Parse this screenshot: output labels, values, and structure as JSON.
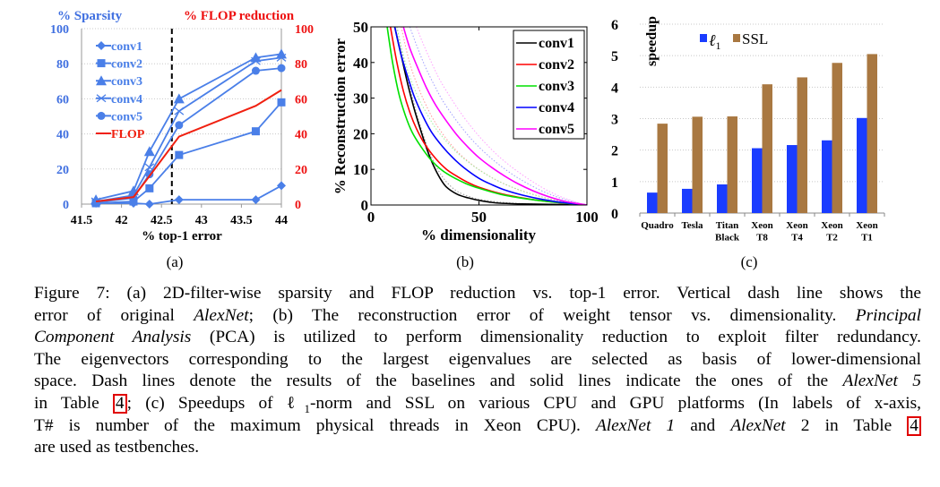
{
  "chart_data": [
    {
      "id": "a",
      "type": "line",
      "panel_label": "(a)",
      "y_title_left": "% Sparsity",
      "y_title_right": "% FLOP reduction",
      "xlabel": "% top-1 error",
      "xlim": [
        41.5,
        44
      ],
      "ylim": [
        0,
        100
      ],
      "x_ticks": [
        "41.5",
        "42",
        "42.5",
        "43",
        "43.5",
        "44"
      ],
      "y_ticks": [
        "0",
        "20",
        "40",
        "60",
        "80",
        "100"
      ],
      "y_ticks_right": [
        "0",
        "20",
        "40",
        "60",
        "80",
        "100"
      ],
      "grid": true,
      "legend_position": "top-left",
      "vertical_dash_line_x": 42.63,
      "colors": {
        "conv": "#4a7fe8",
        "flop": "#f02010",
        "left_axis": "#3f6fe0",
        "right_axis": "#ee1111"
      },
      "series": [
        {
          "name": "conv1",
          "marker": "diamond",
          "x": [
            41.68,
            42.15,
            42.35,
            42.72,
            43.68,
            44.0
          ],
          "y": [
            0.5,
            0.5,
            0,
            2.5,
            2.5,
            10.5
          ]
        },
        {
          "name": "conv2",
          "marker": "square",
          "x": [
            41.68,
            42.15,
            42.35,
            42.72,
            43.68,
            44.0
          ],
          "y": [
            0.5,
            1.5,
            9,
            28,
            41.5,
            58
          ]
        },
        {
          "name": "conv3",
          "marker": "triangle",
          "x": [
            41.68,
            42.15,
            42.35,
            42.72,
            43.68,
            44.0
          ],
          "y": [
            2.5,
            7.5,
            30,
            60,
            83.5,
            85.5
          ]
        },
        {
          "name": "conv4",
          "marker": "x",
          "x": [
            41.68,
            42.15,
            42.35,
            42.72,
            43.68,
            44.0
          ],
          "y": [
            1.5,
            5,
            21,
            53,
            81.5,
            83.5
          ]
        },
        {
          "name": "conv5",
          "marker": "circle",
          "x": [
            41.68,
            42.15,
            42.35,
            42.72,
            43.68,
            44.0
          ],
          "y": [
            1,
            3.5,
            17,
            45,
            76,
            77.5
          ]
        },
        {
          "name": "FLOP",
          "marker": "none",
          "x": [
            41.68,
            42.15,
            42.35,
            42.72,
            43.68,
            44.0
          ],
          "y": [
            1.5,
            4,
            16,
            38.5,
            56,
            65
          ]
        }
      ]
    },
    {
      "id": "b",
      "type": "line",
      "panel_label": "(b)",
      "ylabel": "% Reconstruction error",
      "xlabel": "% dimensionality",
      "xlim": [
        0,
        100
      ],
      "ylim": [
        0,
        50
      ],
      "x_ticks": [
        "0",
        "50",
        "100"
      ],
      "y_ticks": [
        "0",
        "10",
        "20",
        "30",
        "40",
        "50"
      ],
      "grid": false,
      "legend_position": "top-right",
      "note": "solid lines = AlexNet 5, dotted lines = baselines",
      "series": [
        {
          "name": "conv1",
          "color": "#000000",
          "style": "solid",
          "x": [
            11,
            14,
            17,
            20,
            23,
            26,
            29,
            32,
            35,
            40,
            45,
            50,
            55,
            60,
            70,
            80,
            90,
            100
          ],
          "y": [
            50,
            42,
            34,
            27,
            21,
            15.5,
            11,
            7.5,
            5,
            3,
            2,
            1.3,
            0.8,
            0.5,
            0.3,
            0.2,
            0.1,
            0
          ]
        },
        {
          "name": "conv2",
          "color": "#ff0000",
          "style": "solid",
          "x": [
            9,
            12,
            15,
            18,
            21,
            25,
            30,
            35,
            40,
            45,
            50,
            60,
            70,
            80,
            90,
            100
          ],
          "y": [
            50,
            40,
            32,
            26,
            21.5,
            17,
            13,
            10,
            8,
            6.3,
            5,
            3.2,
            2,
            1.1,
            0.5,
            0
          ]
        },
        {
          "name": "conv3",
          "color": "#00e000",
          "style": "solid",
          "x": [
            7.5,
            10,
            13,
            16,
            19,
            23,
            28,
            33,
            38,
            44,
            50,
            60,
            70,
            80,
            90,
            100
          ],
          "y": [
            50,
            40,
            31,
            25,
            20.5,
            16.5,
            12.5,
            9.7,
            7.8,
            6,
            4.7,
            3,
            1.9,
            1.1,
            0.5,
            0
          ]
        },
        {
          "name": "conv4",
          "color": "#0000ff",
          "style": "solid",
          "x": [
            11,
            14,
            17,
            20,
            24,
            28,
            33,
            38,
            43,
            50,
            56,
            62,
            70,
            80,
            90,
            100
          ],
          "y": [
            50,
            42,
            36,
            30.5,
            25,
            20.5,
            16.5,
            13.2,
            10.5,
            7.5,
            5.7,
            4.2,
            2.8,
            1.5,
            0.6,
            0
          ]
        },
        {
          "name": "conv5",
          "color": "#ff00ff",
          "style": "solid",
          "x": [
            15,
            18,
            22,
            26,
            30,
            35,
            40,
            45,
            50,
            56,
            62,
            68,
            75,
            82,
            90,
            100
          ],
          "y": [
            50,
            44,
            38,
            32.5,
            28,
            23.5,
            19.5,
            16.2,
            13.3,
            10.5,
            8.1,
            6,
            4,
            2.4,
            1,
            0
          ]
        },
        {
          "name": "conv1 baseline",
          "color": "#999999",
          "style": "dotted",
          "x": [
            12,
            15,
            18,
            21,
            24,
            27,
            30,
            33,
            36,
            40,
            45,
            50,
            60,
            70,
            80,
            90,
            100
          ],
          "y": [
            50,
            41,
            33,
            26,
            20,
            15,
            11,
            8,
            5.8,
            3.8,
            2.5,
            1.6,
            0.8,
            0.4,
            0.2,
            0.1,
            0
          ]
        },
        {
          "name": "conv2 baseline",
          "color": "#ff9a9a",
          "style": "dotted",
          "x": [
            14,
            17,
            20,
            24,
            28,
            32,
            37,
            42,
            48,
            54,
            60,
            67,
            75,
            83,
            91,
            100
          ],
          "y": [
            50,
            42,
            36,
            30,
            25,
            21,
            17,
            13.8,
            10.8,
            8.4,
            6.4,
            4.6,
            3,
            1.7,
            0.7,
            0
          ]
        },
        {
          "name": "conv3 baseline",
          "color": "#a0f0a0",
          "style": "dotted",
          "x": [
            12,
            15,
            18,
            22,
            26,
            30,
            35,
            40,
            46,
            52,
            58,
            65,
            73,
            82,
            91,
            100
          ],
          "y": [
            50,
            42,
            36,
            30,
            25.5,
            21.5,
            17.8,
            14.6,
            11.6,
            9.1,
            7,
            5.1,
            3.3,
            1.8,
            0.7,
            0
          ]
        },
        {
          "name": "conv4 baseline",
          "color": "#a0a0ff",
          "style": "dotted",
          "x": [
            18,
            21,
            25,
            29,
            33,
            38,
            43,
            48,
            54,
            60,
            66,
            72,
            79,
            86,
            93,
            100
          ],
          "y": [
            50,
            45,
            39,
            34,
            29.5,
            25,
            21,
            17.5,
            14,
            11,
            8.4,
            6.2,
            4,
            2.3,
            1,
            0
          ]
        },
        {
          "name": "conv5 baseline",
          "color": "#ffa0ff",
          "style": "dotted",
          "x": [
            21,
            24,
            28,
            32,
            37,
            42,
            47,
            52,
            58,
            64,
            70,
            76,
            82,
            88,
            94,
            100
          ],
          "y": [
            50,
            45.5,
            40,
            35,
            30,
            25.5,
            21.5,
            18,
            14.3,
            11.2,
            8.5,
            6.1,
            4,
            2.3,
            1,
            0
          ]
        }
      ]
    },
    {
      "id": "c",
      "type": "bar",
      "panel_label": "(c)",
      "ylabel": "speedup",
      "ylim": [
        0,
        6
      ],
      "y_ticks": [
        "0",
        "1",
        "2",
        "3",
        "4",
        "5",
        "6"
      ],
      "grid": true,
      "legend_position": "top-left",
      "categories": [
        [
          "Quadro"
        ],
        [
          "Tesla"
        ],
        [
          "Titan",
          "Black"
        ],
        [
          "Xeon",
          "T8"
        ],
        [
          "Xeon",
          "T4"
        ],
        [
          "Xeon",
          "T2"
        ],
        [
          "Xeon",
          "T1"
        ]
      ],
      "series": [
        {
          "name": "ℓ1",
          "color": "#1a3cff",
          "values": [
            0.65,
            0.77,
            0.91,
            2.06,
            2.16,
            2.31,
            3.02
          ]
        },
        {
          "name": "SSL",
          "color": "#a97841",
          "values": [
            2.84,
            3.06,
            3.07,
            4.09,
            4.31,
            4.77,
            5.05
          ]
        }
      ]
    }
  ],
  "caption": {
    "lines": [
      [
        {
          "t": "Figure 7: (a) 2D-filter-wise sparsity and FLOP reduction vs. top-1 error. Vertical dash line shows the"
        }
      ],
      [
        {
          "t": "error of original "
        },
        {
          "t": "AlexNet",
          "i": true
        },
        {
          "t": "; (b) The reconstruction error of weight tensor vs. dimensionality. "
        },
        {
          "t": "Principal",
          "i": true
        }
      ],
      [
        {
          "t": "Component Analysis",
          "i": true
        },
        {
          "t": " (PCA) is utilized to perform dimensionality reduction to exploit filter redundancy."
        }
      ],
      [
        {
          "t": "The eigenvectors corresponding to the largest eigenvalues are selected as basis of lower-dimensional"
        }
      ],
      [
        {
          "t": "space. Dash lines denote the results of the baselines and solid lines indicate the ones of the "
        },
        {
          "t": "AlexNet 5",
          "i": true
        }
      ],
      [
        {
          "t": "in Table "
        },
        {
          "t": "4",
          "ref": true
        },
        {
          "t": "; (c) Speedups of ℓ"
        },
        {
          "t": "1",
          "sub": true
        },
        {
          "t": "-norm and SSL on various CPU and GPU platforms (In labels of x-axis,"
        }
      ],
      [
        {
          "t": "T# is number of the maximum physical threads in Xeon CPU). "
        },
        {
          "t": "AlexNet 1",
          "i": true
        },
        {
          "t": " and "
        },
        {
          "t": "AlexNet",
          "i": true
        },
        {
          "t": " 2 in Table "
        },
        {
          "t": "4",
          "ref": true
        }
      ],
      [
        {
          "t": "are used as testbenches."
        }
      ]
    ]
  }
}
